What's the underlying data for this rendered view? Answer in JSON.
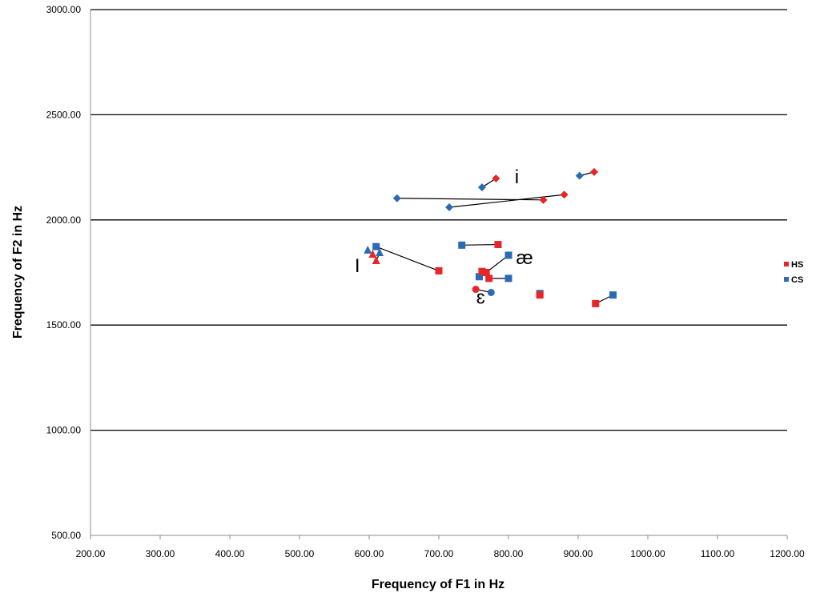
{
  "chart_data": {
    "type": "scatter",
    "xlabel": "Frequency of F1 in Hz",
    "ylabel": "Frequency of F2 in Hz",
    "xlim": [
      200,
      1200
    ],
    "ylim": [
      500,
      3000
    ],
    "x_ticks": [
      "200.00",
      "300.00",
      "400.00",
      "500.00",
      "600.00",
      "700.00",
      "800.00",
      "900.00",
      "1000.00",
      "1100.00",
      "1200.00"
    ],
    "y_ticks": [
      "500.00",
      "1000.00",
      "1500.00",
      "2000.00",
      "2500.00",
      "3000.00"
    ],
    "gridlines": "horizontal",
    "legend_position": "right",
    "series": [
      {
        "name": "HS",
        "color": "#e8262a"
      },
      {
        "name": "CS",
        "color": "#2b6bb5"
      }
    ],
    "vowel_groups": [
      {
        "vowel": "i",
        "marker": "diamond",
        "pairs": [
          {
            "hs": [
              782,
              2197
            ],
            "cs": [
              762,
              2155
            ]
          },
          {
            "hs": [
              923,
              2228
            ],
            "cs": [
              902,
              2210
            ]
          },
          {
            "hs": [
              850,
              2095
            ],
            "cs": [
              640,
              2103
            ]
          },
          {
            "hs": [
              880,
              2120
            ],
            "cs": [
              715,
              2060
            ]
          }
        ]
      },
      {
        "vowel": "I",
        "marker": "triangle",
        "pairs": [
          {
            "hs": [
              605,
              1835
            ],
            "cs": [
              598,
              1855
            ]
          },
          {
            "hs": [
              610,
              1805
            ],
            "cs": [
              615,
              1843
            ]
          }
        ]
      },
      {
        "vowel": "æ",
        "marker": "square",
        "pairs": [
          {
            "hs": [
              700,
              1758
            ],
            "cs": [
              610,
              1873
            ]
          },
          {
            "hs": [
              785,
              1883
            ],
            "cs": [
              733,
              1880
            ]
          },
          {
            "hs": [
              768,
              1750
            ],
            "cs": [
              800,
              1832
            ]
          },
          {
            "hs": [
              772,
              1722
            ],
            "cs": [
              800,
              1722
            ]
          },
          {
            "hs": [
              762,
              1755
            ],
            "cs": [
              758,
              1730
            ]
          },
          {
            "hs": [
              845,
              1643
            ],
            "cs": [
              845,
              1650
            ]
          },
          {
            "hs": [
              925,
              1602
            ],
            "cs": [
              950,
              1643
            ]
          }
        ]
      },
      {
        "vowel": "ɛ",
        "marker": "circle",
        "pairs": [
          {
            "hs": [
              753,
              1670
            ],
            "cs": [
              775,
              1655
            ]
          }
        ]
      }
    ],
    "annotations": [
      {
        "text": "i",
        "x": 812,
        "y": 2175
      },
      {
        "text": "I",
        "x": 583,
        "y": 1752
      },
      {
        "text": "æ",
        "x": 823,
        "y": 1790
      },
      {
        "text": "ɛ",
        "x": 760,
        "y": 1602
      }
    ]
  }
}
